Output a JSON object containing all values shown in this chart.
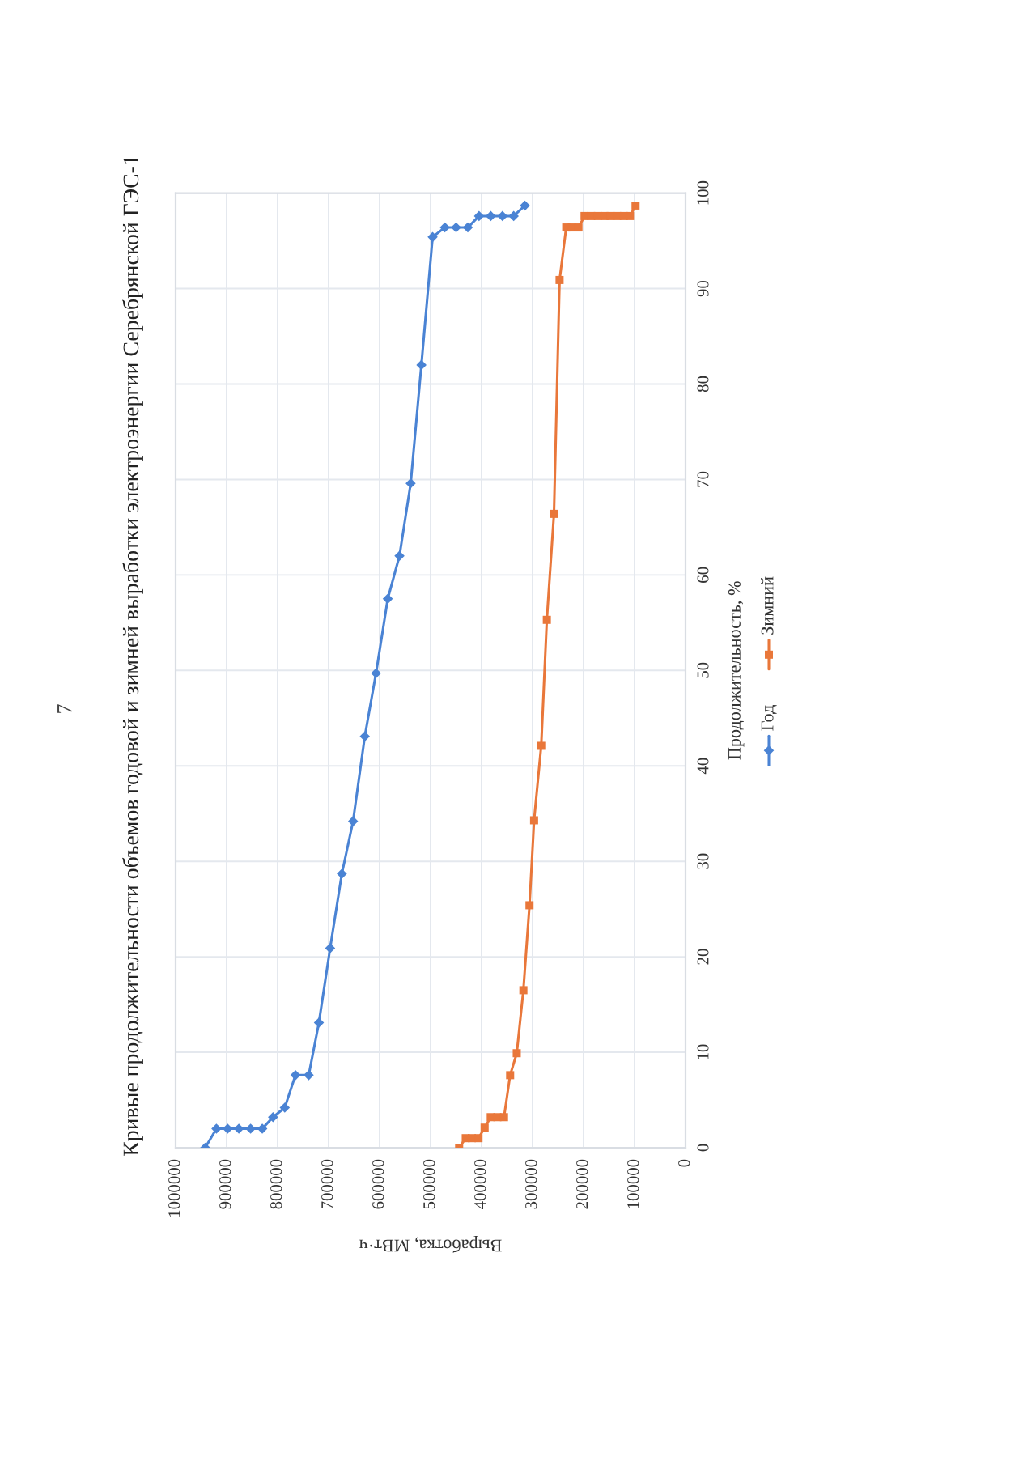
{
  "chart_data": {
    "type": "line",
    "title": "Кривые продолжительности объемов годовой и зимней выработки электроэнергии Серебрянской ГЭС-1",
    "xlabel": "Выработка, МВт·ч",
    "ylabel": "Продолжительность, %",
    "annotations": [
      "7"
    ],
    "xlim": [
      1000000,
      0
    ],
    "xticks": [
      1000000,
      900000,
      800000,
      700000,
      600000,
      500000,
      400000,
      300000,
      200000,
      100000,
      0
    ],
    "ylim": [
      0,
      100
    ],
    "yticks": [
      0,
      10,
      20,
      30,
      40,
      50,
      60,
      70,
      80,
      90,
      100
    ],
    "grid": true,
    "legend": "right",
    "series": [
      {
        "name": "Год",
        "color": "#4a83d4",
        "marker": "diamond",
        "x": [
          942000,
          920000,
          898000,
          876000,
          853000,
          830000,
          809000,
          786000,
          765000,
          739000,
          719000,
          697000,
          674000,
          652000,
          629000,
          607000,
          584000,
          561000,
          539000,
          518000,
          496000,
          472000,
          450000,
          427000,
          405000,
          382000,
          359000,
          337000,
          315000
        ],
        "values": [
          0,
          2,
          2,
          2,
          2,
          2,
          3.2,
          4.2,
          7.6,
          7.6,
          13.1,
          20.9,
          28.7,
          34.2,
          43.1,
          49.7,
          57.5,
          62,
          69.6,
          82,
          95.4,
          96.4,
          96.4,
          96.4,
          97.6,
          97.6,
          97.6,
          97.6,
          98.7
        ]
      },
      {
        "name": "Зимний",
        "color": "#e9773a",
        "marker": "square",
        "x": [
          444000,
          431000,
          419000,
          406000,
          394000,
          382000,
          369000,
          356000,
          344000,
          331000,
          318000,
          306000,
          297000,
          283000,
          272000,
          258000,
          247000,
          234000,
          223000,
          210000,
          198000,
          185000,
          172000,
          159000,
          147000,
          134000,
          121000,
          109000,
          98000
        ],
        "values": [
          0,
          1,
          1,
          1,
          2.1,
          3.2,
          3.2,
          3.2,
          7.6,
          9.9,
          16.5,
          25.4,
          34.3,
          42.1,
          55.3,
          66.4,
          90.9,
          96.4,
          96.4,
          96.4,
          97.6,
          97.6,
          97.6,
          97.6,
          97.6,
          97.6,
          97.6,
          97.6,
          98.7
        ]
      }
    ]
  }
}
